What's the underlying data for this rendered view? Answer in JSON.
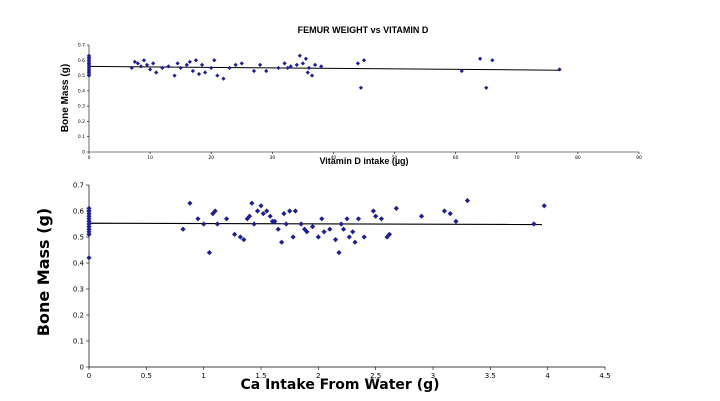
{
  "chart_data": [
    {
      "type": "scatter",
      "title": "FEMUR WEIGHT vs VITAMIN D",
      "xlabel": "Vitamin D intake (µg)",
      "ylabel": "Bone Mass (g)",
      "xlim": [
        0,
        90
      ],
      "ylim": [
        0,
        0.7
      ],
      "xticks": [
        "0",
        "10",
        "20",
        "30",
        "40",
        "50",
        "60",
        "70",
        "80",
        "90"
      ],
      "yticks": [
        "0",
        "0.1",
        "0.2",
        "0.3",
        "0.4",
        "0.5",
        "0.6",
        "0.7"
      ],
      "marker_color": "#1f1f8f",
      "trend_color": "#000000",
      "trendline": {
        "x": [
          0,
          77
        ],
        "y": [
          0.56,
          0.535
        ]
      },
      "x": [
        0,
        0,
        0,
        0,
        0,
        0,
        0,
        0,
        0,
        0,
        0,
        0,
        0,
        0,
        0,
        0,
        7,
        7.5,
        8,
        8.5,
        9,
        9.5,
        10,
        10.5,
        11,
        12,
        13,
        14,
        14.5,
        15,
        16,
        16.5,
        17,
        17.5,
        18,
        18.5,
        19,
        20,
        20.5,
        21,
        22,
        23,
        24,
        25,
        27,
        28,
        29,
        31,
        32,
        32.5,
        33,
        34,
        34.5,
        35,
        35.5,
        35.8,
        36,
        36.5,
        37,
        38,
        44,
        44.5,
        45,
        61,
        64,
        65,
        66,
        77
      ],
      "y": [
        0.63,
        0.62,
        0.61,
        0.6,
        0.59,
        0.58,
        0.57,
        0.56,
        0.55,
        0.54,
        0.53,
        0.52,
        0.51,
        0.5,
        0.62,
        0.58,
        0.55,
        0.59,
        0.58,
        0.56,
        0.6,
        0.57,
        0.54,
        0.58,
        0.52,
        0.55,
        0.56,
        0.5,
        0.58,
        0.55,
        0.57,
        0.59,
        0.53,
        0.6,
        0.51,
        0.57,
        0.52,
        0.55,
        0.6,
        0.5,
        0.48,
        0.55,
        0.57,
        0.58,
        0.53,
        0.57,
        0.53,
        0.55,
        0.58,
        0.55,
        0.56,
        0.57,
        0.63,
        0.58,
        0.61,
        0.52,
        0.55,
        0.5,
        0.57,
        0.56,
        0.58,
        0.42,
        0.6,
        0.53,
        0.61,
        0.42,
        0.6,
        0.54
      ]
    },
    {
      "type": "scatter",
      "title": "",
      "xlabel": "Ca Intake From Water (g)",
      "ylabel": "Bone Mass (g)",
      "xlim": [
        0,
        4.5
      ],
      "ylim": [
        0,
        0.7
      ],
      "xticks": [
        "0",
        "0.5",
        "1",
        "1.5",
        "2",
        "2.5",
        "3",
        "3.5",
        "4",
        "4.5"
      ],
      "yticks": [
        "0",
        "0.1",
        "0.2",
        "0.3",
        "0.4",
        "0.5",
        "0.6",
        "0.7"
      ],
      "marker_color": "#1f1f8f",
      "trend_color": "#000000",
      "trendline": {
        "x": [
          0,
          3.95
        ],
        "y": [
          0.553,
          0.548
        ]
      },
      "x": [
        0,
        0,
        0,
        0,
        0,
        0,
        0,
        0,
        0,
        0,
        0,
        0,
        0.82,
        0.88,
        0.95,
        1.0,
        1.05,
        1.08,
        1.1,
        1.12,
        1.2,
        1.27,
        1.32,
        1.35,
        1.38,
        1.4,
        1.42,
        1.44,
        1.47,
        1.5,
        1.52,
        1.55,
        1.58,
        1.6,
        1.62,
        1.65,
        1.68,
        1.7,
        1.72,
        1.75,
        1.78,
        1.8,
        1.85,
        1.88,
        1.9,
        1.95,
        2.0,
        2.03,
        2.05,
        2.1,
        2.15,
        2.18,
        2.2,
        2.22,
        2.25,
        2.27,
        2.3,
        2.32,
        2.35,
        2.4,
        2.48,
        2.5,
        2.55,
        2.6,
        2.62,
        2.68,
        2.9,
        3.1,
        3.15,
        3.2,
        3.3,
        3.88,
        3.97
      ],
      "y": [
        0.61,
        0.6,
        0.59,
        0.58,
        0.57,
        0.56,
        0.55,
        0.54,
        0.53,
        0.52,
        0.51,
        0.42,
        0.53,
        0.63,
        0.57,
        0.55,
        0.44,
        0.59,
        0.6,
        0.55,
        0.57,
        0.51,
        0.5,
        0.49,
        0.57,
        0.58,
        0.63,
        0.55,
        0.6,
        0.62,
        0.59,
        0.6,
        0.58,
        0.56,
        0.56,
        0.53,
        0.48,
        0.59,
        0.55,
        0.6,
        0.5,
        0.6,
        0.55,
        0.53,
        0.52,
        0.54,
        0.5,
        0.57,
        0.52,
        0.53,
        0.49,
        0.44,
        0.55,
        0.53,
        0.57,
        0.5,
        0.52,
        0.48,
        0.57,
        0.5,
        0.6,
        0.58,
        0.57,
        0.5,
        0.51,
        0.61,
        0.58,
        0.6,
        0.59,
        0.56,
        0.64,
        0.55,
        0.62
      ]
    }
  ]
}
